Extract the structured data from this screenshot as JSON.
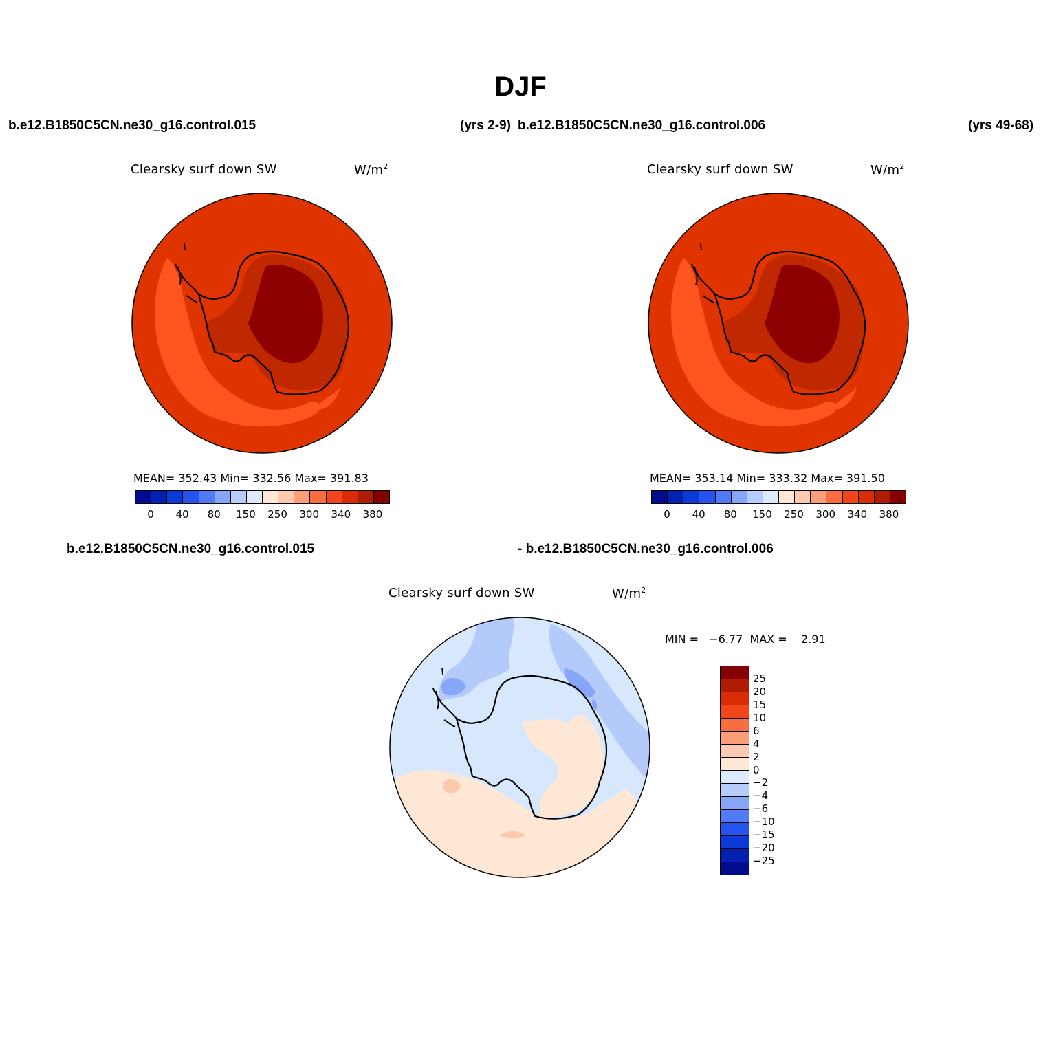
{
  "figure": {
    "title": "DJF",
    "case_left": "b.e12.B1850C5CN.ne30_g16.control.015",
    "years_left": "(yrs 2-9)",
    "case_right": "b.e12.B1850C5CN.ne30_g16.control.006",
    "years_right": "(yrs 49-68)"
  },
  "panels": [
    {
      "field": "Clearsky surf down SW",
      "units": "W/m",
      "units_sup": "2",
      "stats": "MEAN= 352.43  Min= 332.56  Max= 391.83",
      "mean": 352.43,
      "min": 332.56,
      "max": 391.83
    },
    {
      "field": "Clearsky surf down SW",
      "units": "W/m",
      "units_sup": "2",
      "stats": "MEAN= 353.14  Min= 333.32  Max= 391.50",
      "mean": 353.14,
      "min": 333.32,
      "max": 391.5
    }
  ],
  "diff_panel": {
    "label_left": "b.e12.B1850C5CN.ne30_g16.control.015",
    "label_right": "- b.e12.B1850C5CN.ne30_g16.control.006",
    "field": "Clearsky surf down SW",
    "units": "W/m",
    "units_sup": "2",
    "stats": "MIN =   −6.77  MAX =    2.91",
    "min": -6.77,
    "max": 2.91
  },
  "colorbar_abs": {
    "colors": [
      "#000b8e",
      "#0321b0",
      "#0b3ad8",
      "#2454f0",
      "#4f7cf6",
      "#86a7f8",
      "#b6ccfa",
      "#dde9fd",
      "#fee7d4",
      "#fdc9af",
      "#fc9f78",
      "#fa6d3f",
      "#f2461a",
      "#d82d07",
      "#b01c02",
      "#850000"
    ],
    "labels": [
      "0",
      "40",
      "80",
      "150",
      "250",
      "300",
      "340",
      "380"
    ]
  },
  "colorbar_diff": {
    "colors": [
      "#850000",
      "#b01c02",
      "#d82d07",
      "#f2461a",
      "#fa6d3f",
      "#fc9f78",
      "#fdc9af",
      "#fee7d4",
      "#dde9fd",
      "#b6ccfa",
      "#86a7f8",
      "#4f7cf6",
      "#2454f0",
      "#0b3ad8",
      "#0321b0",
      "#000b8e"
    ],
    "labels": [
      "25",
      "20",
      "15",
      "10",
      "6",
      "4",
      "2",
      "0",
      "−2",
      "−4",
      "−6",
      "−10",
      "−15",
      "−20",
      "−25"
    ]
  },
  "map_colors": {
    "ocean_outer": "#e03400",
    "ocean_low": "#ff551e",
    "coast_band": "#f2461a",
    "shelf": "#c02800",
    "plateau": "#8c0000",
    "diff_base": "#d7e8fd",
    "diff_pos": "#fee7d4",
    "diff_pos_strong": "#fcc9ad",
    "diff_neg": "#b3cafa",
    "diff_neg_strong": "#86a7f8"
  }
}
